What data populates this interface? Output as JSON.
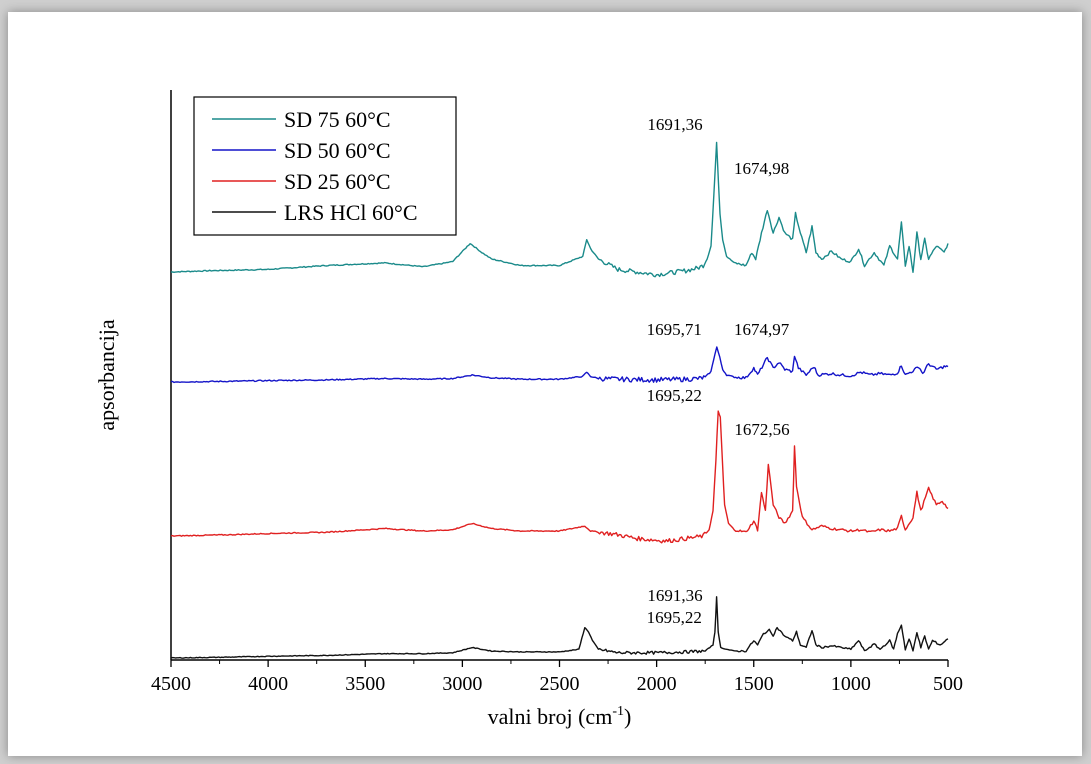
{
  "chart_data": {
    "type": "line",
    "title": "",
    "xlabel": "valni broj (cm",
    "xlabel_sup": "-1",
    "xlabel_suffix": ")",
    "ylabel": "apsorbancija",
    "xlim": [
      4500,
      500
    ],
    "x_reversed": true,
    "x_ticks": [
      4500,
      4000,
      3500,
      3000,
      2500,
      2000,
      1500,
      1000,
      500
    ],
    "y_tick_labels": false,
    "grid": false,
    "legend_position": "top-left",
    "series": [
      {
        "name": "SD 75 60°C",
        "color": "#1a8a8a",
        "offset": 3,
        "points": [
          [
            4500,
            0
          ],
          [
            4300,
            0.01
          ],
          [
            4000,
            0.02
          ],
          [
            3700,
            0.05
          ],
          [
            3400,
            0.07
          ],
          [
            3200,
            0.04
          ],
          [
            3050,
            0.08
          ],
          [
            2960,
            0.22
          ],
          [
            2900,
            0.15
          ],
          [
            2850,
            0.1
          ],
          [
            2700,
            0.05
          ],
          [
            2500,
            0.05
          ],
          [
            2380,
            0.12
          ],
          [
            2360,
            0.25
          ],
          [
            2340,
            0.18
          ],
          [
            2300,
            0.1
          ],
          [
            2200,
            0.02
          ],
          [
            2000,
            -0.02
          ],
          [
            1850,
            0.01
          ],
          [
            1790,
            0.03
          ],
          [
            1760,
            0.05
          ],
          [
            1740,
            0.1
          ],
          [
            1720,
            0.2
          ],
          [
            1705,
            0.6
          ],
          [
            1691,
            1.0
          ],
          [
            1682,
            0.7
          ],
          [
            1674,
            0.45
          ],
          [
            1660,
            0.25
          ],
          [
            1640,
            0.12
          ],
          [
            1600,
            0.07
          ],
          [
            1540,
            0.05
          ],
          [
            1510,
            0.15
          ],
          [
            1490,
            0.1
          ],
          [
            1460,
            0.3
          ],
          [
            1430,
            0.48
          ],
          [
            1400,
            0.3
          ],
          [
            1370,
            0.42
          ],
          [
            1340,
            0.3
          ],
          [
            1300,
            0.25
          ],
          [
            1285,
            0.45
          ],
          [
            1260,
            0.3
          ],
          [
            1230,
            0.15
          ],
          [
            1200,
            0.35
          ],
          [
            1180,
            0.15
          ],
          [
            1150,
            0.1
          ],
          [
            1100,
            0.16
          ],
          [
            1050,
            0.1
          ],
          [
            1000,
            0.08
          ],
          [
            960,
            0.18
          ],
          [
            930,
            0.05
          ],
          [
            880,
            0.15
          ],
          [
            830,
            0.05
          ],
          [
            800,
            0.2
          ],
          [
            760,
            0.1
          ],
          [
            740,
            0.38
          ],
          [
            720,
            0.05
          ],
          [
            700,
            0.2
          ],
          [
            680,
            0.0
          ],
          [
            660,
            0.3
          ],
          [
            640,
            0.1
          ],
          [
            620,
            0.25
          ],
          [
            600,
            0.1
          ],
          [
            560,
            0.2
          ],
          [
            520,
            0.15
          ],
          [
            500,
            0.22
          ]
        ]
      },
      {
        "name": "SD 50 60°C",
        "color": "#1414c8",
        "offset": 2,
        "points": [
          [
            4500,
            0
          ],
          [
            4200,
            0.01
          ],
          [
            4000,
            0.02
          ],
          [
            3700,
            0.03
          ],
          [
            3400,
            0.05
          ],
          [
            3200,
            0.04
          ],
          [
            3050,
            0.05
          ],
          [
            2950,
            0.1
          ],
          [
            2900,
            0.08
          ],
          [
            2850,
            0.06
          ],
          [
            2700,
            0.04
          ],
          [
            2500,
            0.04
          ],
          [
            2380,
            0.08
          ],
          [
            2360,
            0.14
          ],
          [
            2340,
            0.08
          ],
          [
            2300,
            0.05
          ],
          [
            2200,
            0.04
          ],
          [
            2000,
            0.03
          ],
          [
            1850,
            0.04
          ],
          [
            1780,
            0.05
          ],
          [
            1750,
            0.07
          ],
          [
            1720,
            0.15
          ],
          [
            1700,
            0.4
          ],
          [
            1690,
            0.5
          ],
          [
            1675,
            0.35
          ],
          [
            1660,
            0.18
          ],
          [
            1640,
            0.1
          ],
          [
            1600,
            0.07
          ],
          [
            1540,
            0.06
          ],
          [
            1500,
            0.2
          ],
          [
            1480,
            0.1
          ],
          [
            1450,
            0.25
          ],
          [
            1430,
            0.35
          ],
          [
            1400,
            0.2
          ],
          [
            1370,
            0.28
          ],
          [
            1340,
            0.18
          ],
          [
            1300,
            0.15
          ],
          [
            1290,
            0.38
          ],
          [
            1270,
            0.2
          ],
          [
            1230,
            0.1
          ],
          [
            1190,
            0.22
          ],
          [
            1170,
            0.1
          ],
          [
            1100,
            0.12
          ],
          [
            1050,
            0.1
          ],
          [
            1000,
            0.09
          ],
          [
            950,
            0.14
          ],
          [
            900,
            0.1
          ],
          [
            850,
            0.12
          ],
          [
            800,
            0.1
          ],
          [
            760,
            0.13
          ],
          [
            740,
            0.24
          ],
          [
            720,
            0.1
          ],
          [
            680,
            0.16
          ],
          [
            650,
            0.22
          ],
          [
            630,
            0.12
          ],
          [
            600,
            0.26
          ],
          [
            560,
            0.18
          ],
          [
            520,
            0.22
          ],
          [
            500,
            0.22
          ]
        ]
      },
      {
        "name": "SD 25 60°C",
        "color": "#e02020",
        "offset": 1,
        "points": [
          [
            4500,
            0
          ],
          [
            4200,
            0.01
          ],
          [
            4000,
            0.02
          ],
          [
            3700,
            0.03
          ],
          [
            3400,
            0.06
          ],
          [
            3200,
            0.04
          ],
          [
            3050,
            0.05
          ],
          [
            2950,
            0.1
          ],
          [
            2900,
            0.08
          ],
          [
            2850,
            0.06
          ],
          [
            2700,
            0.04
          ],
          [
            2500,
            0.04
          ],
          [
            2370,
            0.08
          ],
          [
            2340,
            0.04
          ],
          [
            2200,
            0.01
          ],
          [
            2100,
            -0.02
          ],
          [
            1950,
            -0.04
          ],
          [
            1800,
            -0.01
          ],
          [
            1760,
            0.0
          ],
          [
            1730,
            0.05
          ],
          [
            1710,
            0.2
          ],
          [
            1695,
            0.6
          ],
          [
            1683,
            1.0
          ],
          [
            1672,
            0.95
          ],
          [
            1660,
            0.55
          ],
          [
            1650,
            0.25
          ],
          [
            1630,
            0.1
          ],
          [
            1600,
            0.05
          ],
          [
            1540,
            0.03
          ],
          [
            1500,
            0.12
          ],
          [
            1480,
            0.05
          ],
          [
            1460,
            0.35
          ],
          [
            1440,
            0.2
          ],
          [
            1425,
            0.58
          ],
          [
            1400,
            0.25
          ],
          [
            1370,
            0.15
          ],
          [
            1340,
            0.1
          ],
          [
            1300,
            0.2
          ],
          [
            1290,
            0.72
          ],
          [
            1280,
            0.4
          ],
          [
            1250,
            0.15
          ],
          [
            1200,
            0.05
          ],
          [
            1150,
            0.08
          ],
          [
            1100,
            0.06
          ],
          [
            1050,
            0.05
          ],
          [
            1000,
            0.04
          ],
          [
            950,
            0.05
          ],
          [
            900,
            0.03
          ],
          [
            850,
            0.05
          ],
          [
            800,
            0.04
          ],
          [
            760,
            0.06
          ],
          [
            740,
            0.16
          ],
          [
            720,
            0.05
          ],
          [
            680,
            0.15
          ],
          [
            660,
            0.35
          ],
          [
            640,
            0.2
          ],
          [
            600,
            0.38
          ],
          [
            560,
            0.25
          ],
          [
            530,
            0.28
          ],
          [
            500,
            0.22
          ]
        ]
      },
      {
        "name": "LRS HCl 60°C",
        "color": "#111111",
        "offset": 0,
        "points": [
          [
            4500,
            0
          ],
          [
            4200,
            0.01
          ],
          [
            4000,
            0.02
          ],
          [
            3700,
            0.03
          ],
          [
            3400,
            0.05
          ],
          [
            3200,
            0.05
          ],
          [
            3050,
            0.06
          ],
          [
            2950,
            0.12
          ],
          [
            2900,
            0.1
          ],
          [
            2850,
            0.08
          ],
          [
            2700,
            0.07
          ],
          [
            2500,
            0.07
          ],
          [
            2400,
            0.1
          ],
          [
            2370,
            0.35
          ],
          [
            2350,
            0.3
          ],
          [
            2330,
            0.2
          ],
          [
            2300,
            0.1
          ],
          [
            2200,
            0.06
          ],
          [
            2000,
            0.06
          ],
          [
            1850,
            0.07
          ],
          [
            1750,
            0.08
          ],
          [
            1710,
            0.15
          ],
          [
            1700,
            0.3
          ],
          [
            1691,
            0.7
          ],
          [
            1683,
            0.3
          ],
          [
            1670,
            0.12
          ],
          [
            1640,
            0.1
          ],
          [
            1600,
            0.08
          ],
          [
            1540,
            0.08
          ],
          [
            1500,
            0.2
          ],
          [
            1480,
            0.15
          ],
          [
            1450,
            0.28
          ],
          [
            1420,
            0.32
          ],
          [
            1400,
            0.26
          ],
          [
            1380,
            0.35
          ],
          [
            1340,
            0.25
          ],
          [
            1300,
            0.2
          ],
          [
            1280,
            0.3
          ],
          [
            1260,
            0.15
          ],
          [
            1230,
            0.12
          ],
          [
            1200,
            0.32
          ],
          [
            1180,
            0.15
          ],
          [
            1150,
            0.12
          ],
          [
            1100,
            0.14
          ],
          [
            1050,
            0.12
          ],
          [
            1000,
            0.1
          ],
          [
            960,
            0.2
          ],
          [
            930,
            0.08
          ],
          [
            880,
            0.16
          ],
          [
            850,
            0.1
          ],
          [
            800,
            0.2
          ],
          [
            780,
            0.1
          ],
          [
            760,
            0.28
          ],
          [
            740,
            0.38
          ],
          [
            720,
            0.1
          ],
          [
            700,
            0.22
          ],
          [
            680,
            0.08
          ],
          [
            660,
            0.3
          ],
          [
            640,
            0.12
          ],
          [
            620,
            0.25
          ],
          [
            600,
            0.1
          ],
          [
            580,
            0.2
          ],
          [
            540,
            0.15
          ],
          [
            500,
            0.22
          ]
        ]
      }
    ],
    "annotations": [
      {
        "text": "1691,36",
        "series": 0,
        "x": 1691,
        "anchor": "end"
      },
      {
        "text": "1674,98",
        "series": 0,
        "x": 1674,
        "anchor": "start"
      },
      {
        "text": "1695,71",
        "series": 1,
        "x": 1695,
        "anchor": "end"
      },
      {
        "text": "1674,97",
        "series": 1,
        "x": 1674,
        "anchor": "start"
      },
      {
        "text": "1672,56",
        "series": 2,
        "x": 1672,
        "anchor": "start"
      },
      {
        "text": "1695,22",
        "series": 2,
        "x": 1695,
        "anchor": "end"
      },
      {
        "text": "1691,36",
        "series": 3,
        "x": 1691,
        "anchor": "end"
      },
      {
        "text": "1695,22",
        "series": 3,
        "x": 1695,
        "anchor": "end"
      }
    ]
  }
}
